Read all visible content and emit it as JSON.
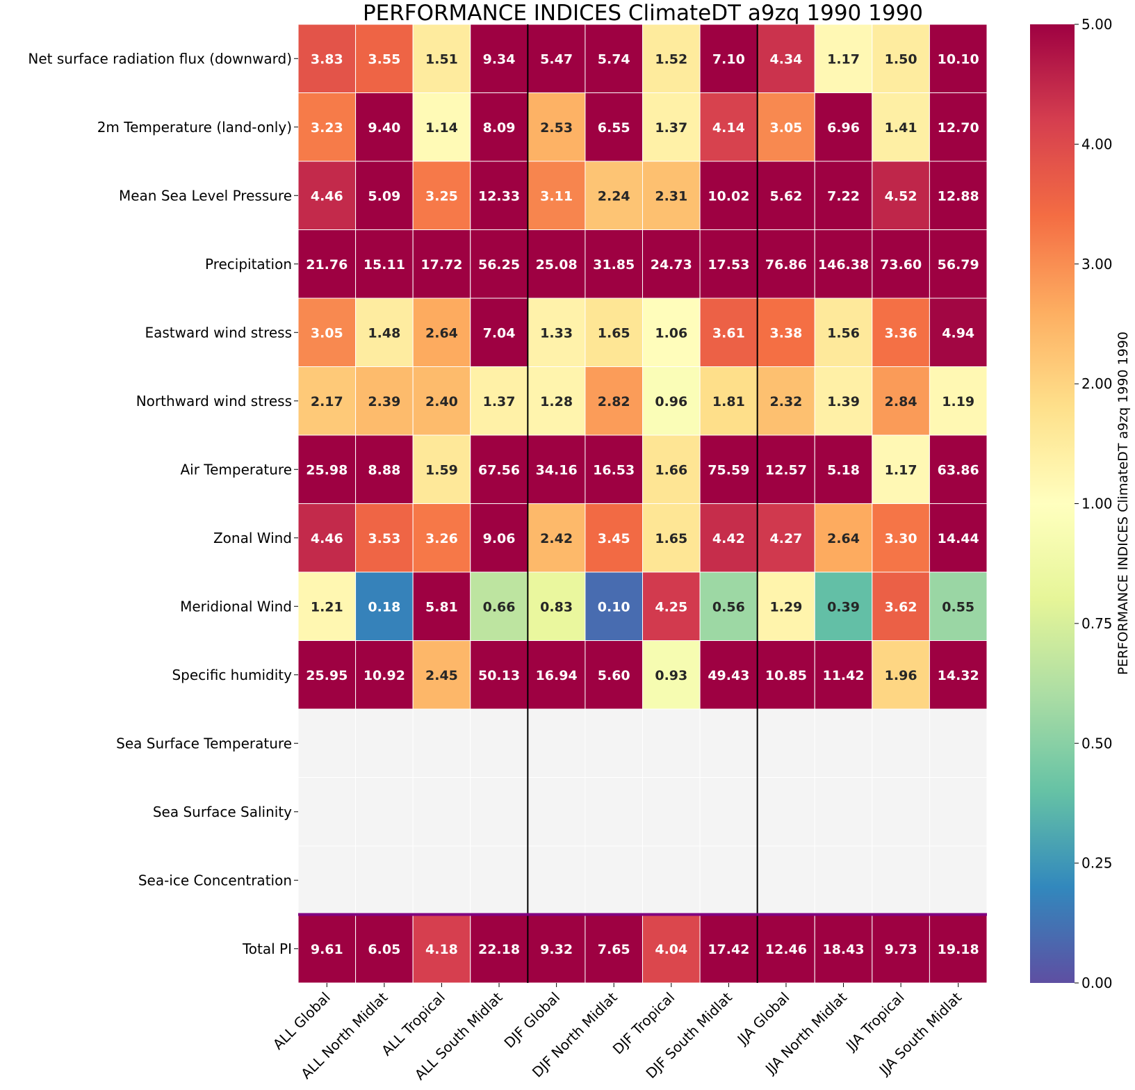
{
  "chart_data": {
    "type": "heatmap",
    "title": "PERFORMANCE INDICES ClimateDT a9zq 1990 1990",
    "colormap": "Spectral_r",
    "missing_color": "#f4f4f4",
    "separator_color": "#800080",
    "vmin": 0,
    "vmax": 5,
    "colorbar": {
      "label": "PERFORMANCE INDICES ClimateDT a9zq 1990 1990",
      "ticks": [
        0.0,
        0.25,
        0.5,
        0.75,
        1.0,
        2.0,
        3.0,
        4.0,
        5.0
      ],
      "tick_labels": [
        "0.00",
        "0.25",
        "0.50",
        "0.75",
        "1.00",
        "2.00",
        "3.00",
        "4.00",
        "5.00"
      ]
    },
    "rows": [
      "Net surface radiation flux (downward)",
      "2m Temperature (land-only)",
      "Mean Sea Level Pressure",
      "Precipitation",
      "Eastward wind stress",
      "Northward wind stress",
      "Air Temperature",
      "Zonal Wind",
      "Meridional Wind",
      "Specific humidity",
      "Sea Surface Temperature",
      "Sea Surface Salinity",
      "Sea-ice Concentration",
      "Total PI"
    ],
    "columns": [
      "ALL Global",
      "ALL North Midlat",
      "ALL Tropical",
      "ALL South Midlat",
      "DJF Global",
      "DJF North Midlat",
      "DJF Tropical",
      "DJF South Midlat",
      "JJA Global",
      "JJA North Midlat",
      "JJA Tropical",
      "JJA South Midlat"
    ],
    "values": [
      [
        3.83,
        3.55,
        1.51,
        9.34,
        5.47,
        5.74,
        1.52,
        7.1,
        4.34,
        1.17,
        1.5,
        10.1
      ],
      [
        3.23,
        9.4,
        1.14,
        8.09,
        2.53,
        6.55,
        1.37,
        4.14,
        3.05,
        6.96,
        1.41,
        12.7
      ],
      [
        4.46,
        5.09,
        3.25,
        12.33,
        3.11,
        2.24,
        2.31,
        10.02,
        5.62,
        7.22,
        4.52,
        12.88
      ],
      [
        21.76,
        15.11,
        17.72,
        56.25,
        25.08,
        31.85,
        24.73,
        17.53,
        76.86,
        146.38,
        73.6,
        56.79
      ],
      [
        3.05,
        1.48,
        2.64,
        7.04,
        1.33,
        1.65,
        1.06,
        3.61,
        3.38,
        1.56,
        3.36,
        4.94
      ],
      [
        2.17,
        2.39,
        2.4,
        1.37,
        1.28,
        2.82,
        0.96,
        1.81,
        2.32,
        1.39,
        2.84,
        1.19
      ],
      [
        25.98,
        8.88,
        1.59,
        67.56,
        34.16,
        16.53,
        1.66,
        75.59,
        12.57,
        5.18,
        1.17,
        63.86
      ],
      [
        4.46,
        3.53,
        3.26,
        9.06,
        2.42,
        3.45,
        1.65,
        4.42,
        4.27,
        2.64,
        3.3,
        14.44
      ],
      [
        1.21,
        0.18,
        5.81,
        0.66,
        0.83,
        0.1,
        4.25,
        0.56,
        1.29,
        0.39,
        3.62,
        0.55
      ],
      [
        25.95,
        10.92,
        2.45,
        50.13,
        16.94,
        5.6,
        0.93,
        49.43,
        10.85,
        11.42,
        1.96,
        14.32
      ],
      [
        null,
        null,
        null,
        null,
        null,
        null,
        null,
        null,
        null,
        null,
        null,
        null
      ],
      [
        null,
        null,
        null,
        null,
        null,
        null,
        null,
        null,
        null,
        null,
        null,
        null
      ],
      [
        null,
        null,
        null,
        null,
        null,
        null,
        null,
        null,
        null,
        null,
        null,
        null
      ],
      [
        9.61,
        6.05,
        4.18,
        22.18,
        9.32,
        7.65,
        4.04,
        17.42,
        12.46,
        18.43,
        9.73,
        19.18
      ]
    ]
  }
}
